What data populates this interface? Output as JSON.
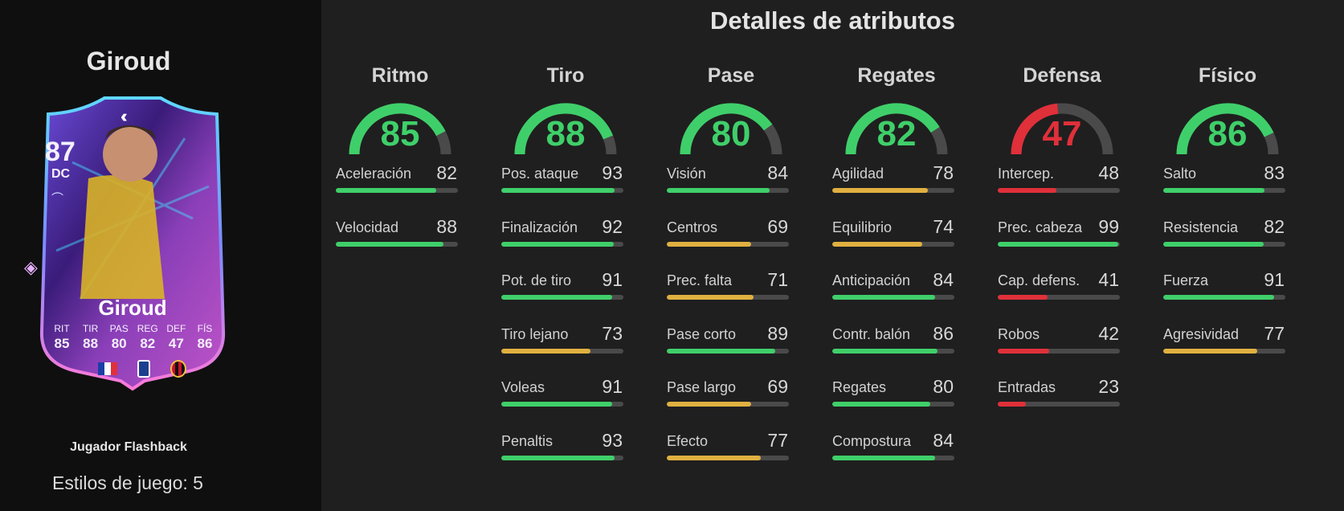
{
  "colors": {
    "high": "#3fcf6a",
    "mid": "#e0b040",
    "low": "#e0303a",
    "track": "#4a4a4a"
  },
  "player": {
    "name": "Giroud",
    "card_type": "Jugador Flashback",
    "playstyles": "Estilos de juego: 5",
    "card": {
      "overall": "87",
      "position": "DC",
      "name": "Giroud",
      "stats": [
        {
          "label": "RIT",
          "value": "85"
        },
        {
          "label": "TIR",
          "value": "88"
        },
        {
          "label": "PAS",
          "value": "80"
        },
        {
          "label": "REG",
          "value": "82"
        },
        {
          "label": "DEF",
          "value": "47"
        },
        {
          "label": "FÍS",
          "value": "86"
        }
      ],
      "icons": [
        "chevrons-up-icon",
        "boot-icon",
        "flag-france-icon",
        "serie-a-icon",
        "ac-milan-icon",
        "gem-icon"
      ]
    }
  },
  "title": "Detalles de atributos",
  "categories": [
    {
      "name": "Ritmo",
      "value": 85,
      "attrs": [
        {
          "name": "Aceleración",
          "value": 82
        },
        {
          "name": "Velocidad",
          "value": 88
        }
      ]
    },
    {
      "name": "Tiro",
      "value": 88,
      "attrs": [
        {
          "name": "Pos. ataque",
          "value": 93
        },
        {
          "name": "Finalización",
          "value": 92
        },
        {
          "name": "Pot. de tiro",
          "value": 91
        },
        {
          "name": "Tiro lejano",
          "value": 73
        },
        {
          "name": "Voleas",
          "value": 91
        },
        {
          "name": "Penaltis",
          "value": 93
        }
      ]
    },
    {
      "name": "Pase",
      "value": 80,
      "attrs": [
        {
          "name": "Visión",
          "value": 84
        },
        {
          "name": "Centros",
          "value": 69
        },
        {
          "name": "Prec. falta",
          "value": 71
        },
        {
          "name": "Pase corto",
          "value": 89
        },
        {
          "name": "Pase largo",
          "value": 69
        },
        {
          "name": "Efecto",
          "value": 77
        }
      ]
    },
    {
      "name": "Regates",
      "value": 82,
      "attrs": [
        {
          "name": "Agilidad",
          "value": 78
        },
        {
          "name": "Equilibrio",
          "value": 74
        },
        {
          "name": "Anticipación",
          "value": 84
        },
        {
          "name": "Contr. balón",
          "value": 86
        },
        {
          "name": "Regates",
          "value": 80
        },
        {
          "name": "Compostura",
          "value": 84
        }
      ]
    },
    {
      "name": "Defensa",
      "value": 47,
      "attrs": [
        {
          "name": "Intercep.",
          "value": 48
        },
        {
          "name": "Prec. cabeza",
          "value": 99
        },
        {
          "name": "Cap. defens.",
          "value": 41
        },
        {
          "name": "Robos",
          "value": 42
        },
        {
          "name": "Entradas",
          "value": 23
        }
      ]
    },
    {
      "name": "Físico",
      "value": 86,
      "attrs": [
        {
          "name": "Salto",
          "value": 83
        },
        {
          "name": "Resistencia",
          "value": 82
        },
        {
          "name": "Fuerza",
          "value": 91
        },
        {
          "name": "Agresividad",
          "value": 77
        }
      ]
    }
  ]
}
